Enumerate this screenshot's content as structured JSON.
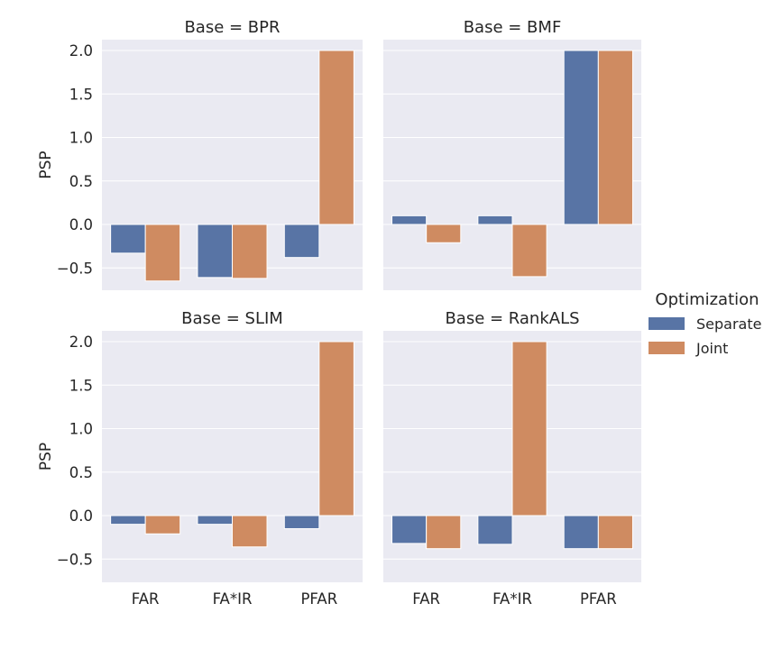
{
  "chart_data": {
    "type": "bar",
    "facet": "Base",
    "categories": [
      "FAR",
      "FA*IR",
      "PFAR"
    ],
    "ylabel": "PSP",
    "xlabel": "",
    "ylim": [
      -0.77,
      2.15
    ],
    "yticks": [
      -0.5,
      0.0,
      0.5,
      1.0,
      1.5,
      2.0
    ],
    "ytick_labels": [
      "−0.5",
      "0.0",
      "0.5",
      "1.0",
      "1.5",
      "2.0"
    ],
    "grid": true,
    "legend": {
      "title": "Optimization",
      "placement": "right",
      "entries": [
        {
          "label": "Separate",
          "color": "#5874a5"
        },
        {
          "label": "Joint",
          "color": "#cf8b61"
        }
      ]
    },
    "panels": [
      {
        "title": "Base = BPR",
        "series": [
          {
            "name": "Separate",
            "values": [
              -0.33,
              -0.61,
              -0.38
            ]
          },
          {
            "name": "Joint",
            "values": [
              -0.65,
              -0.62,
              2.0
            ]
          }
        ]
      },
      {
        "title": "Base = BMF",
        "series": [
          {
            "name": "Separate",
            "values": [
              0.1,
              0.1,
              2.0
            ]
          },
          {
            "name": "Joint",
            "values": [
              -0.21,
              -0.6,
              2.0
            ]
          }
        ]
      },
      {
        "title": "Base = SLIM",
        "series": [
          {
            "name": "Separate",
            "values": [
              -0.1,
              -0.1,
              -0.15
            ]
          },
          {
            "name": "Joint",
            "values": [
              -0.21,
              -0.36,
              2.0
            ]
          }
        ]
      },
      {
        "title": "Base = RankALS",
        "series": [
          {
            "name": "Separate",
            "values": [
              -0.32,
              -0.33,
              -0.38
            ]
          },
          {
            "name": "Joint",
            "values": [
              -0.38,
              2.0,
              -0.38
            ]
          }
        ]
      }
    ]
  }
}
